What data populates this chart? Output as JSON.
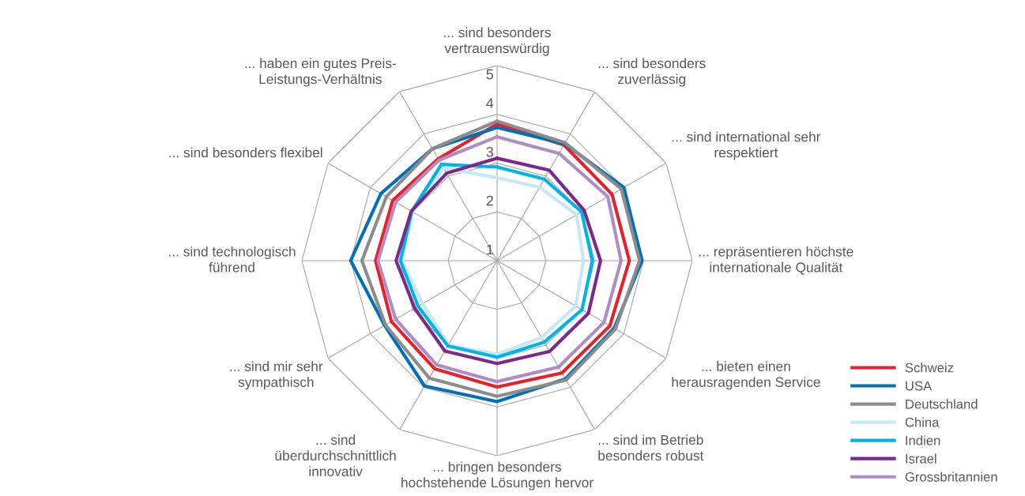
{
  "chart_data": {
    "type": "radar",
    "categories": [
      "... sind besonders\nvertrauenswürdig",
      "... sind besonders\nzuverlässig",
      "... sind international sehr\nrespektiert",
      "... repräsentieren höchste\ninternationale Qualität",
      "... bieten einen\nherausragenden Service",
      "... sind im Betrieb\nbesonders robust",
      "... bringen besonders\nhochstehende Lösungen hervor",
      "... sind\nüberdurchschnittlich\ninnovativ",
      "... sind mir sehr\nsympathisch",
      "... sind technologisch\nführend",
      "... sind besonders flexibel",
      "... haben ein gutes Preis-\nLeistungs-Verhältnis"
    ],
    "series": [
      {
        "name": "Schweiz",
        "color": "#e8202a",
        "values": [
          3.8,
          3.74,
          3.72,
          3.71,
          3.67,
          3.66,
          3.59,
          3.56,
          3.5,
          3.49,
          3.47,
          3.41
        ]
      },
      {
        "name": "USA",
        "color": "#0070b8",
        "values": [
          3.73,
          3.77,
          4.0,
          3.97,
          3.77,
          3.8,
          3.89,
          3.97,
          3.66,
          4.0,
          3.75,
          3.65
        ]
      },
      {
        "name": "Deutschland",
        "color": "#8c8c8c",
        "values": [
          3.86,
          3.79,
          3.94,
          3.92,
          3.8,
          3.83,
          3.78,
          3.78,
          3.64,
          3.77,
          3.62,
          3.65
        ]
      },
      {
        "name": "China",
        "color": "#c6e7f5",
        "values": [
          2.7,
          2.74,
          2.88,
          2.77,
          2.86,
          2.82,
          2.92,
          3.0,
          2.76,
          2.96,
          3.0,
          3.2
        ]
      },
      {
        "name": "Indien",
        "color": "#00b4e6",
        "values": [
          2.92,
          2.93,
          3.0,
          2.95,
          3.01,
          2.93,
          2.98,
          3.02,
          2.87,
          2.98,
          3.02,
          3.28
        ]
      },
      {
        "name": "Israel",
        "color": "#7b2a8c",
        "values": [
          3.1,
          3.14,
          3.06,
          3.12,
          3.16,
          3.15,
          3.11,
          3.14,
          2.95,
          3.07,
          3.03,
          3.07
        ]
      },
      {
        "name": "Grossbritannien",
        "color": "#b08cc4",
        "values": [
          3.54,
          3.54,
          3.62,
          3.54,
          3.53,
          3.52,
          3.48,
          3.47,
          3.4,
          3.44,
          3.4,
          3.38
        ]
      }
    ],
    "ylim": [
      1,
      5
    ],
    "yticks": [
      1,
      2,
      3,
      4,
      5
    ],
    "grid": true,
    "legend": "bottom right"
  }
}
